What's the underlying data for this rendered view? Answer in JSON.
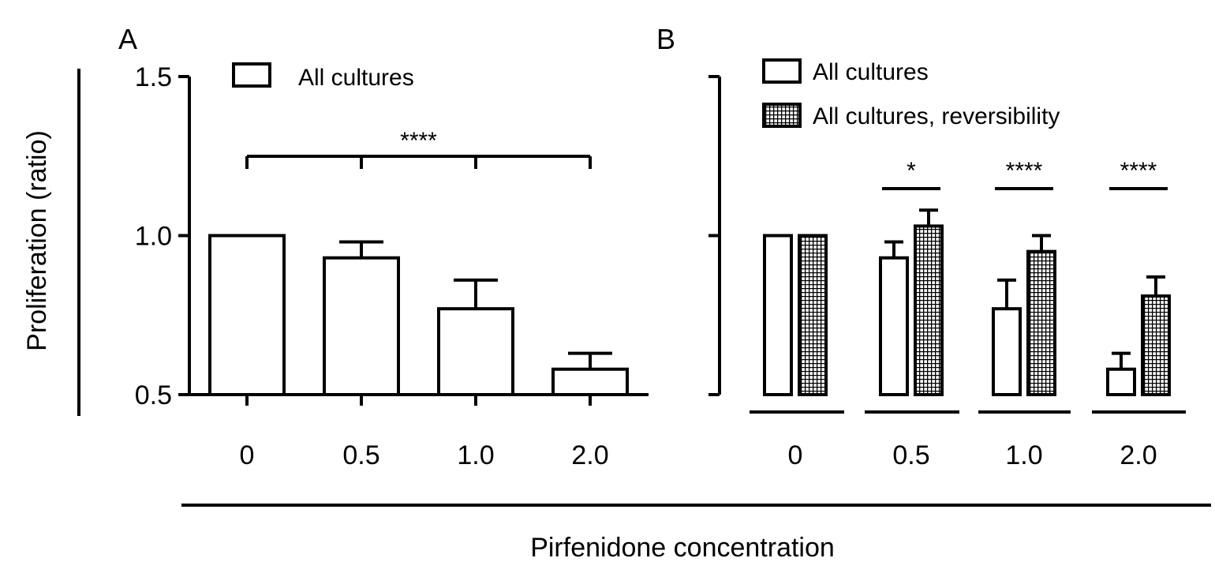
{
  "panels": {
    "a": {
      "label": "A"
    },
    "b": {
      "label": "B"
    }
  },
  "ylabel": "Proliferation (ratio)",
  "xlabel": "Pirfenidone concentration",
  "chart_data": [
    {
      "type": "bar",
      "panel": "A",
      "categories": [
        "0",
        "0.5",
        "1.0",
        "2.0"
      ],
      "series": [
        {
          "name": "All cultures",
          "pattern": "open",
          "values": [
            1.0,
            0.93,
            0.77,
            0.58
          ],
          "errors": [
            0.0,
            0.05,
            0.09,
            0.05
          ]
        }
      ],
      "ylim": [
        0.5,
        1.5
      ],
      "yticks": [
        "0.5",
        "1.0",
        "1.5"
      ],
      "significance": [
        {
          "label": "****",
          "spans": [
            "0",
            "0.5",
            "1.0",
            "2.0"
          ]
        }
      ],
      "legend": "top-left"
    },
    {
      "type": "bar",
      "panel": "B",
      "categories": [
        "0",
        "0.5",
        "1.0",
        "2.0"
      ],
      "series": [
        {
          "name": "All cultures",
          "pattern": "open",
          "values": [
            1.0,
            0.93,
            0.77,
            0.58
          ],
          "errors": [
            0.0,
            0.05,
            0.09,
            0.05
          ]
        },
        {
          "name": "All cultures, reversibility",
          "pattern": "crosshatch",
          "values": [
            1.0,
            1.03,
            0.95,
            0.81
          ],
          "errors": [
            0.0,
            0.05,
            0.05,
            0.06
          ]
        }
      ],
      "ylim": [
        0.5,
        1.5
      ],
      "significance": [
        {
          "label": "",
          "category": "0"
        },
        {
          "label": "*",
          "category": "0.5"
        },
        {
          "label": "****",
          "category": "1.0"
        },
        {
          "label": "****",
          "category": "2.0"
        }
      ],
      "legend": "top"
    }
  ]
}
